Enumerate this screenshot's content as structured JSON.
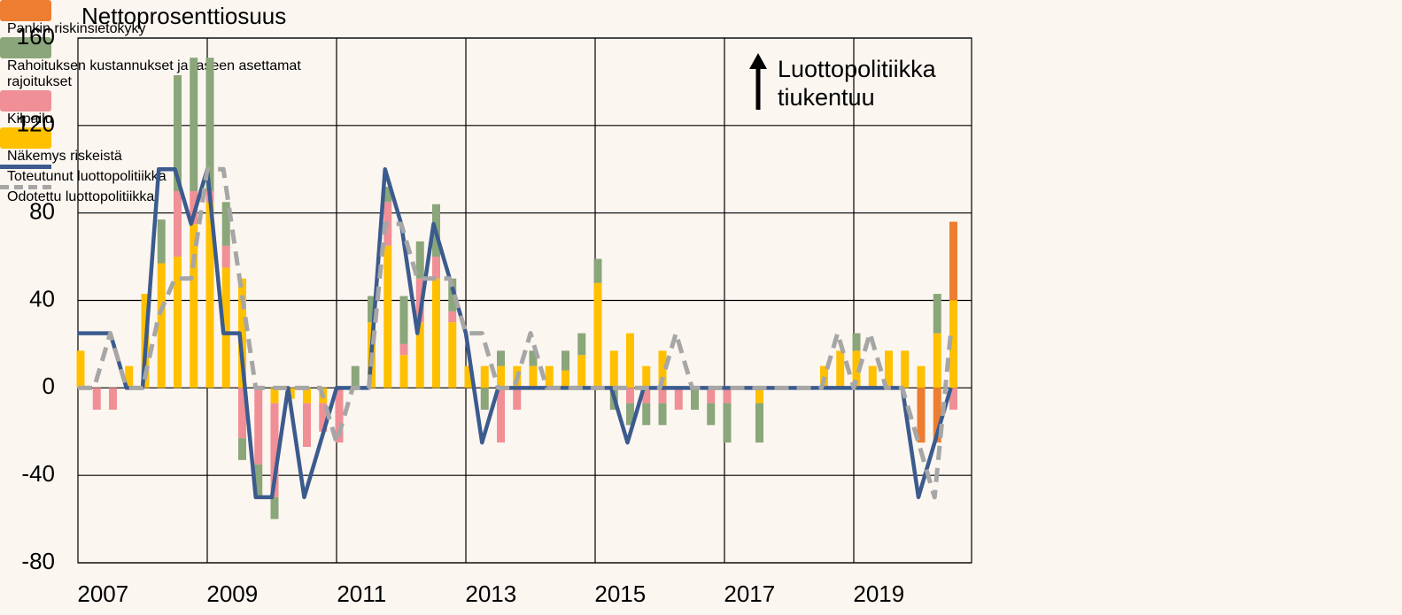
{
  "chart_data": {
    "type": "bar",
    "stacked": true,
    "y_axis_label": "Nettoprosenttiosuus",
    "annotation": "Luottopolitiikka tiukentuu",
    "categories": [
      "2007",
      null,
      null,
      null,
      null,
      null,
      null,
      null,
      "2009",
      null,
      null,
      null,
      null,
      null,
      null,
      null,
      "2011",
      null,
      null,
      null,
      null,
      null,
      null,
      null,
      "2013",
      null,
      null,
      null,
      null,
      null,
      null,
      null,
      "2015",
      null,
      null,
      null,
      null,
      null,
      null,
      null,
      "2017",
      null,
      null,
      null,
      null,
      null,
      null,
      null,
      "2019",
      null,
      null,
      null,
      null,
      null,
      null
    ],
    "series": [
      {
        "name": "Näkemys riskeistä",
        "color": "#ffc000",
        "values": [
          17,
          0,
          0,
          10,
          43,
          57,
          60,
          75,
          85,
          55,
          50,
          0,
          -7,
          -5,
          -7,
          -7,
          0,
          0,
          30,
          65,
          15,
          30,
          50,
          30,
          10,
          10,
          10,
          10,
          10,
          10,
          8,
          15,
          48,
          17,
          25,
          10,
          17,
          0,
          0,
          0,
          0,
          0,
          -7,
          0,
          0,
          0,
          10,
          17,
          17,
          10,
          17,
          17,
          10,
          25,
          40
        ]
      },
      {
        "name": "Kilpailu",
        "color": "#f08f96",
        "values": [
          0,
          -10,
          -10,
          0,
          0,
          0,
          30,
          15,
          5,
          10,
          -23,
          -35,
          -43,
          0,
          -20,
          -13,
          -25,
          0,
          0,
          20,
          5,
          20,
          10,
          5,
          0,
          0,
          -25,
          -10,
          0,
          0,
          0,
          0,
          0,
          0,
          -7,
          -7,
          -7,
          -10,
          0,
          -7,
          -7,
          0,
          0,
          0,
          0,
          0,
          0,
          0,
          0,
          0,
          0,
          0,
          0,
          0,
          -10
        ]
      },
      {
        "name": "Rahoituksen kustannukset ja taseen asettamat rajoitukset",
        "color": "#8aa67a",
        "values": [
          0,
          0,
          0,
          0,
          0,
          20,
          53,
          61,
          61,
          20,
          -10,
          -15,
          -10,
          0,
          0,
          0,
          0,
          10,
          12,
          7,
          22,
          17,
          24,
          15,
          0,
          -10,
          7,
          0,
          7,
          0,
          9,
          10,
          11,
          -10,
          -10,
          -10,
          -10,
          0,
          -10,
          -10,
          -18,
          0,
          -18,
          0,
          0,
          0,
          0,
          0,
          8,
          0,
          0,
          0,
          0,
          18,
          0
        ]
      },
      {
        "name": "Pankin riskinsietokyky",
        "color": "#ed7d31",
        "values": [
          0,
          0,
          0,
          0,
          0,
          0,
          0,
          0,
          0,
          0,
          0,
          0,
          0,
          0,
          0,
          0,
          0,
          0,
          0,
          0,
          0,
          0,
          0,
          0,
          0,
          0,
          0,
          0,
          0,
          0,
          0,
          0,
          0,
          0,
          0,
          0,
          0,
          0,
          0,
          0,
          0,
          0,
          0,
          0,
          0,
          0,
          0,
          0,
          0,
          0,
          0,
          0,
          -25,
          -25,
          36
        ]
      },
      {
        "name": "Toteutunut luottopolitiikka",
        "color": "#3b5b8e",
        "type": "line",
        "dashed": false,
        "values": [
          25,
          25,
          25,
          0,
          0,
          100,
          100,
          75,
          100,
          25,
          25,
          -50,
          -50,
          0,
          -50,
          -25,
          0,
          0,
          0,
          100,
          75,
          25,
          75,
          50,
          25,
          -25,
          0,
          0,
          0,
          0,
          0,
          0,
          0,
          0,
          -25,
          0,
          0,
          0,
          0,
          0,
          0,
          0,
          0,
          0,
          0,
          0,
          0,
          0,
          0,
          0,
          0,
          0,
          -50,
          -25,
          0
        ]
      },
      {
        "name": "Odotettu luottopolitiikka",
        "color": "#a6a6a6",
        "type": "line",
        "dashed": true,
        "values": [
          0,
          0,
          25,
          0,
          0,
          33,
          50,
          50,
          100,
          100,
          50,
          0,
          0,
          0,
          0,
          0,
          -25,
          0,
          0,
          75,
          75,
          50,
          50,
          50,
          25,
          25,
          0,
          0,
          25,
          0,
          0,
          0,
          0,
          0,
          0,
          0,
          0,
          25,
          0,
          0,
          0,
          0,
          0,
          0,
          0,
          0,
          0,
          25,
          0,
          25,
          0,
          0,
          -25,
          -50,
          25
        ]
      }
    ],
    "ylim": [
      -80,
      160
    ],
    "yticks": [
      -80,
      -40,
      0,
      40,
      80,
      120,
      160
    ],
    "grid": true
  }
}
